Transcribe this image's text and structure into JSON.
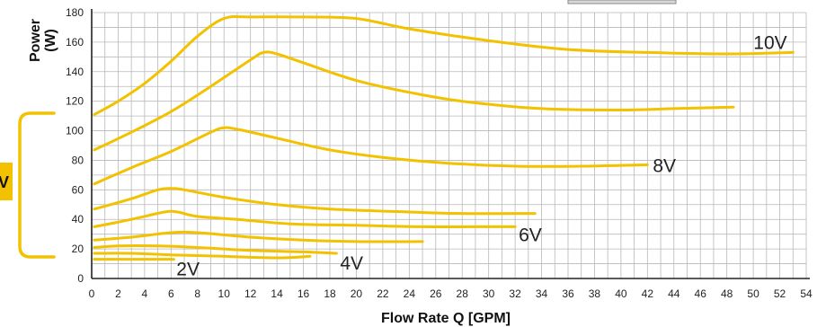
{
  "chart_data": {
    "type": "line",
    "title": "",
    "xlabel": "Flow Rate Q [GPM]",
    "ylabel_line1": "Power",
    "ylabel_line2": "(W)",
    "xlim": [
      0,
      54
    ],
    "ylim": [
      0,
      180
    ],
    "xticks": [
      0,
      2,
      4,
      6,
      8,
      10,
      12,
      14,
      16,
      18,
      20,
      22,
      24,
      26,
      28,
      30,
      32,
      34,
      36,
      38,
      40,
      42,
      44,
      46,
      48,
      50,
      52,
      54
    ],
    "yticks": [
      0,
      20,
      40,
      60,
      80,
      100,
      120,
      140,
      160,
      180
    ],
    "grid": true,
    "line_color": "#f2c200",
    "grid_color": "#b8b8b8",
    "bracket_label": "V",
    "series": [
      {
        "name": "10V",
        "x": [
          0.2,
          2,
          4,
          6,
          8,
          10,
          12,
          16,
          20,
          24,
          30,
          36,
          42,
          48,
          53
        ],
        "y": [
          111,
          120,
          132,
          147,
          164,
          176,
          177,
          177,
          176,
          169,
          161,
          155,
          153,
          152,
          153
        ]
      },
      {
        "name": "",
        "x": [
          0.2,
          3,
          6,
          9,
          12,
          13,
          14,
          16,
          20,
          24,
          28,
          34,
          40,
          44,
          48.5
        ],
        "y": [
          87,
          99,
          113,
          130,
          148,
          153,
          152,
          146,
          134,
          126,
          120,
          115,
          114,
          115,
          116
        ]
      },
      {
        "name": "8V",
        "x": [
          0.2,
          3,
          6,
          9,
          10,
          11,
          14,
          18,
          22,
          27,
          32,
          37,
          42
        ],
        "y": [
          64,
          75,
          86,
          99,
          102,
          101,
          95,
          87,
          82,
          78,
          76,
          76,
          77
        ]
      },
      {
        "name": "",
        "x": [
          0.2,
          3,
          5,
          6,
          7,
          10,
          14,
          18,
          24,
          28,
          33.5
        ],
        "y": [
          47,
          54,
          60,
          61,
          60,
          55,
          50,
          47,
          45,
          44,
          44
        ]
      },
      {
        "name": "6V",
        "x": [
          0.2,
          3,
          5.5,
          6.5,
          8,
          11,
          15,
          20,
          25,
          29,
          32
        ],
        "y": [
          35,
          40,
          45,
          45,
          42,
          40,
          37,
          36,
          35,
          35,
          35
        ]
      },
      {
        "name": "",
        "x": [
          0.2,
          3,
          6,
          8,
          12,
          16,
          20,
          25
        ],
        "y": [
          26,
          28,
          31,
          31,
          28,
          26,
          25,
          25
        ]
      },
      {
        "name": "4V",
        "x": [
          0.2,
          2,
          5,
          8,
          12,
          16,
          18.5
        ],
        "y": [
          21,
          22,
          22,
          21,
          19,
          18,
          17
        ]
      },
      {
        "name": "",
        "x": [
          0.2,
          3,
          6,
          10,
          14,
          16.5
        ],
        "y": [
          17,
          17,
          16,
          15,
          14,
          15
        ]
      },
      {
        "name": "2V",
        "x": [
          0.2,
          3,
          6.2
        ],
        "y": [
          13,
          13,
          13
        ]
      }
    ]
  }
}
